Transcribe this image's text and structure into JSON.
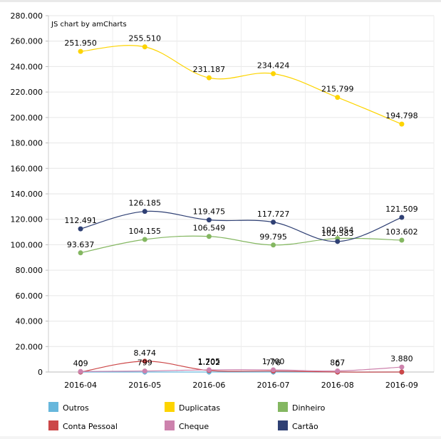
{
  "credit": "JS chart by amCharts",
  "chart_data": {
    "type": "line",
    "categories": [
      "2016-04",
      "2016-05",
      "2016-06",
      "2016-07",
      "2016-08",
      "2016-09"
    ],
    "y_ticks": [
      "0",
      "20.000",
      "40.000",
      "60.000",
      "80.000",
      "100.000",
      "120.000",
      "140.000",
      "160.000",
      "180.000",
      "200.000",
      "220.000",
      "240.000",
      "260.000",
      "280.000"
    ],
    "ylim": [
      0,
      280000
    ],
    "grid": true,
    "legend_position": "bottom",
    "series": [
      {
        "name": "Outros",
        "color": "#67b7dc",
        "values": [
          0,
          0,
          0,
          0,
          0,
          0
        ],
        "labels": [
          "",
          "",
          "",
          "",
          "",
          ""
        ]
      },
      {
        "name": "Duplicatas",
        "color": "#fdd400",
        "values": [
          251950,
          255510,
          231187,
          234424,
          215799,
          194798
        ],
        "labels": [
          "251.950",
          "255.510",
          "231.187",
          "234.424",
          "215.799",
          "194.798"
        ]
      },
      {
        "name": "Dinheiro",
        "color": "#84b761",
        "values": [
          93637,
          104155,
          106549,
          99795,
          104954,
          103602
        ],
        "labels": [
          "93.637",
          "104.155",
          "106.549",
          "99.795",
          "104.954",
          "103.602"
        ]
      },
      {
        "name": "Conta Pessoal",
        "color": "#cc4748",
        "values": [
          0,
          8474,
          1202,
          776,
          0,
          0
        ],
        "labels": [
          "0",
          "8.474",
          "1.202",
          "776",
          "0",
          ""
        ]
      },
      {
        "name": "Cheque",
        "color": "#cd82ad",
        "values": [
          409,
          799,
          1705,
          1700,
          867,
          3880
        ],
        "labels": [
          "409",
          "799",
          "1.705",
          "1.700",
          "867",
          "3.880"
        ]
      },
      {
        "name": "Cartão",
        "color": "#2f4074",
        "values": [
          112491,
          126185,
          119475,
          117727,
          102583,
          121509
        ],
        "labels": [
          "112.491",
          "126.185",
          "119.475",
          "117.727",
          "102.583",
          "121.509"
        ]
      }
    ]
  }
}
